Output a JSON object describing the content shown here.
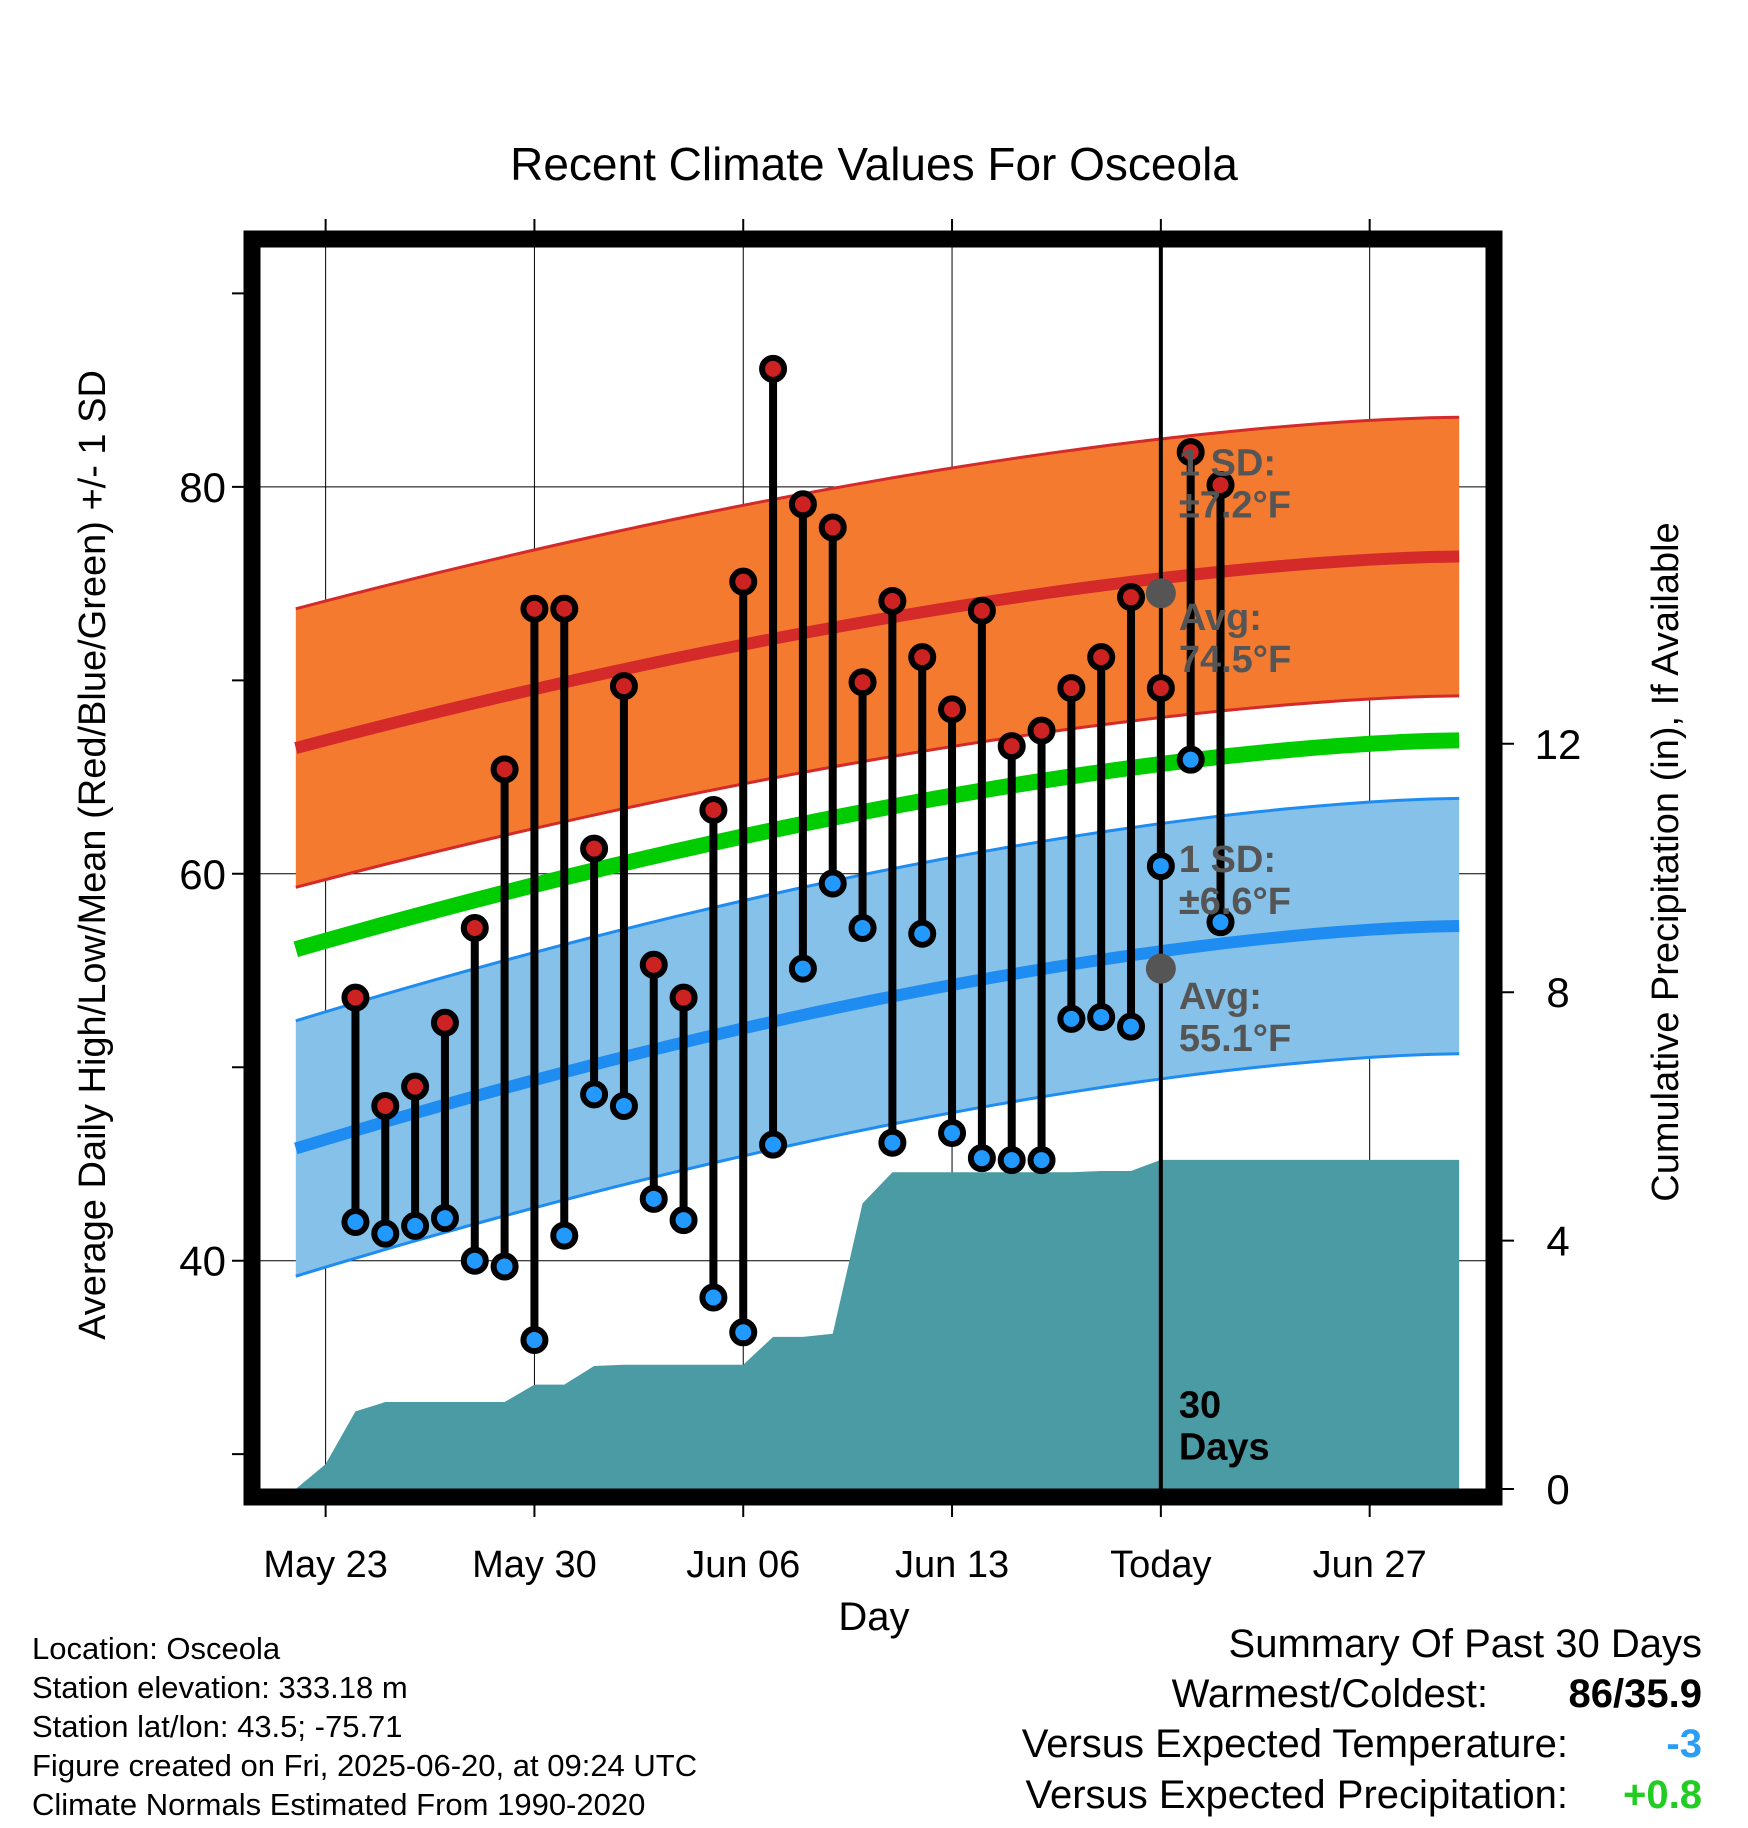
{
  "chart_data": {
    "type": "line",
    "title": "Recent Climate Values For Osceola",
    "xlabel": "Day",
    "ylabel": "Average Daily High/Low/Mean (Red/Blue/Green) +/- 1 SD",
    "y2label": "Cumulative Precipitation (in), If Available",
    "x_tick_labels": [
      "May 23",
      "May 30",
      "Jun 06",
      "Jun 13",
      "Today",
      "Jun 27"
    ],
    "y_ticks": [
      40,
      60,
      80
    ],
    "y_tick_labels": [
      "40",
      "60",
      "80"
    ],
    "y2_ticks": [
      0,
      4,
      8,
      12
    ],
    "y2_tick_labels": [
      "0",
      "4",
      "8",
      "12"
    ],
    "ylim": [
      28.2,
      92.4
    ],
    "y2lim": [
      0,
      20
    ],
    "xlim": [
      -3.2,
      37.9
    ],
    "today_index": 27,
    "grid": true,
    "colors": {
      "high_band": "#f47a30",
      "high_line": "#d42a2a",
      "low_band": "#85c1e8",
      "low_line": "#1e8cf0",
      "mean_line": "#00cc00",
      "precip": "#4a9ba3",
      "high_marker": "#cc2222",
      "low_marker": "#2299ff",
      "today_marker": "#555555"
    },
    "series": [
      {
        "kind": "observed_high_low",
        "day": [
          0,
          1,
          2,
          3,
          4,
          5,
          6,
          7,
          8,
          9,
          10,
          11,
          12,
          13,
          14,
          15,
          16,
          17,
          18,
          19,
          20,
          21,
          22,
          23,
          24,
          25,
          26,
          27,
          28,
          29
        ],
        "high": [
          53.6,
          48,
          49,
          52.3,
          57.2,
          65.4,
          73.7,
          73.7,
          61.3,
          69.7,
          55.3,
          53.6,
          63.3,
          75.1,
          86.1,
          79.1,
          77.9,
          69.9,
          74.1,
          71.2,
          68.5,
          73.6,
          66.6,
          67.4,
          69.6,
          71.2,
          74.3,
          69.6,
          81.8,
          80.1
        ],
        "low": [
          42,
          41.4,
          41.8,
          42.2,
          40,
          39.7,
          35.9,
          41.3,
          48.6,
          48,
          43.2,
          42.1,
          38.1,
          36.3,
          46,
          55.1,
          59.5,
          57.2,
          46.1,
          56.9,
          46.6,
          45.3,
          45.2,
          45.2,
          52.5,
          52.6,
          52.1,
          60.4,
          65.9,
          57.5
        ]
      },
      {
        "name": "Avg high",
        "kind": "normal_high",
        "day": [
          -2,
          37
        ],
        "mean": [
          66.5,
          76.4
        ],
        "sd": 7.2
      },
      {
        "name": "Avg low",
        "kind": "normal_low",
        "day": [
          -2,
          37
        ],
        "mean": [
          45.8,
          57.3
        ],
        "sd": 6.6
      },
      {
        "name": "Avg mean",
        "kind": "normal_mean",
        "day": [
          -2,
          37
        ],
        "mean": [
          56.1,
          66.9
        ]
      },
      {
        "kind": "cumulative_precip",
        "day": [
          -2,
          -1,
          0,
          1,
          2,
          3,
          4,
          5,
          6,
          7,
          8,
          9,
          10,
          11,
          12,
          13,
          14,
          15,
          16,
          17,
          18,
          19,
          20,
          21,
          22,
          23,
          24,
          25,
          26,
          27,
          28,
          29,
          37
        ],
        "value": [
          0,
          0.4,
          1.25,
          1.4,
          1.4,
          1.4,
          1.4,
          1.4,
          1.68,
          1.68,
          1.98,
          2.0,
          2.0,
          2.0,
          2.0,
          2.0,
          2.45,
          2.45,
          2.5,
          4.6,
          5.1,
          5.1,
          5.1,
          5.1,
          5.1,
          5.1,
          5.1,
          5.12,
          5.12,
          5.3,
          5.3,
          5.3,
          5.3
        ]
      }
    ],
    "annotations": [
      {
        "text_line1": "1 SD:",
        "text_line2": "±7.2°F"
      },
      {
        "text_line1": "Avg:",
        "text_line2": "74.5°F"
      },
      {
        "text_line1": "1 SD:",
        "text_line2": "±6.6°F"
      },
      {
        "text_line1": "Avg:",
        "text_line2": "55.1°F"
      },
      {
        "text_line1": "30",
        "text_line2": "Days"
      }
    ],
    "today_high_avg": 74.5,
    "today_low_avg": 55.1
  },
  "info": {
    "location": "Location: Osceola",
    "elevation": "Station elevation: 333.18 m",
    "latlon": "Station lat/lon: 43.5; -75.71",
    "created": "Figure created on Fri, 2025-06-20, at 09:24 UTC",
    "normals": "Climate Normals Estimated From 1990-2020"
  },
  "summary": {
    "title": "Summary Of Past 30 Days",
    "warm_cold_label": "Warmest/Coldest:",
    "warm_cold_value": "86/35.9",
    "temp_label": "Versus Expected Temperature:",
    "temp_value": "-3",
    "temp_color": "#2a9df4",
    "precip_label": "Versus Expected Precipitation:",
    "precip_value": "+0.8",
    "precip_color": "#22cc22"
  }
}
